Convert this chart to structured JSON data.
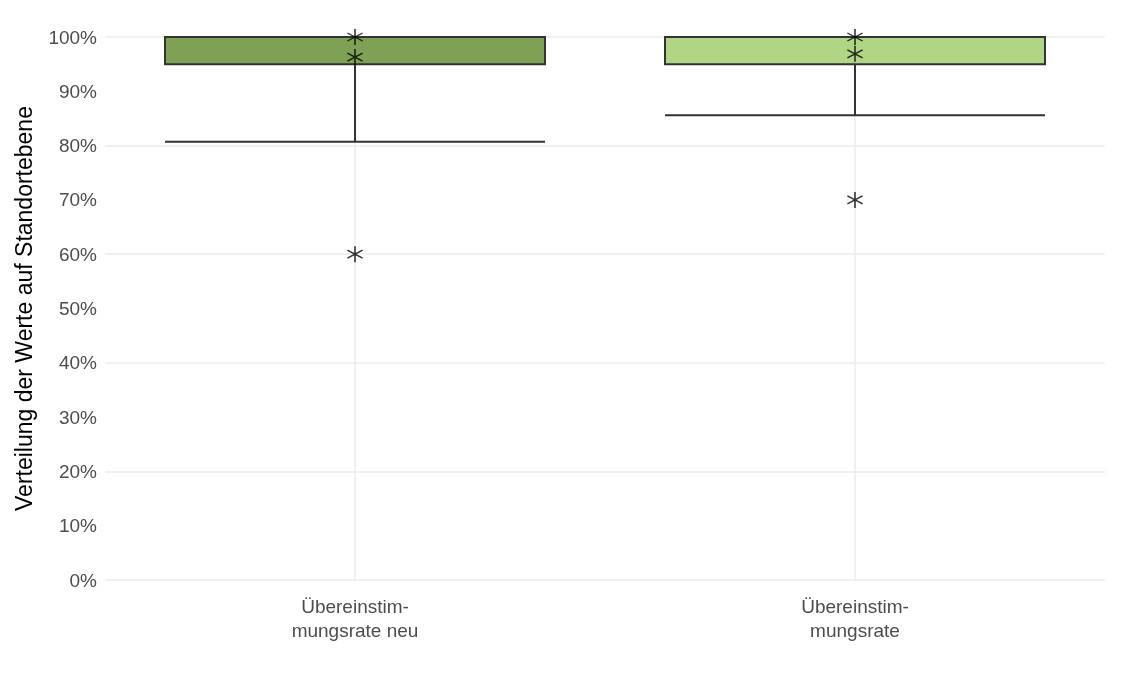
{
  "chart_data": {
    "type": "box",
    "ylabel": "Verteilung der Werte auf Standortebene",
    "categories": [
      "Übereinstim-\nmungsrate neu",
      "Übereinstim-\nmungsrate"
    ],
    "colors": [
      "#7fa155",
      "#b0d585"
    ],
    "boxes": [
      {
        "low": 80.7,
        "q1": 95,
        "median": 100,
        "q3": 100,
        "high": 100
      },
      {
        "low": 85.6,
        "q1": 95,
        "median": 100,
        "q3": 100,
        "high": 100
      }
    ],
    "series": [
      {
        "type": "scatter",
        "color": "#000000",
        "x": [
          "Übereinstim-\nmungsrate neu",
          "Übereinstim-\nmungsrate neu",
          "Übereinstim-\nmungsrate neu",
          "Übereinstim-\nmungsrate",
          "Übereinstim-\nmungsrate",
          "Übereinstim-\nmungsrate"
        ],
        "values": [
          100,
          96.3,
          60,
          100,
          96.9,
          70
        ]
      }
    ],
    "ylim": [
      0,
      100
    ],
    "yticks": [
      {
        "value": 0,
        "label": "0%"
      },
      {
        "value": 10,
        "label": "10%"
      },
      {
        "value": 20,
        "label": "20%"
      },
      {
        "value": 30,
        "label": "30%"
      },
      {
        "value": 40,
        "label": "40%"
      },
      {
        "value": 50,
        "label": "50%"
      },
      {
        "value": 60,
        "label": "60%"
      },
      {
        "value": 70,
        "label": "70%"
      },
      {
        "value": 80,
        "label": "80%"
      },
      {
        "value": 90,
        "label": "90%"
      },
      {
        "value": 100,
        "label": "100%"
      }
    ],
    "grid": true,
    "marker": "cross"
  }
}
